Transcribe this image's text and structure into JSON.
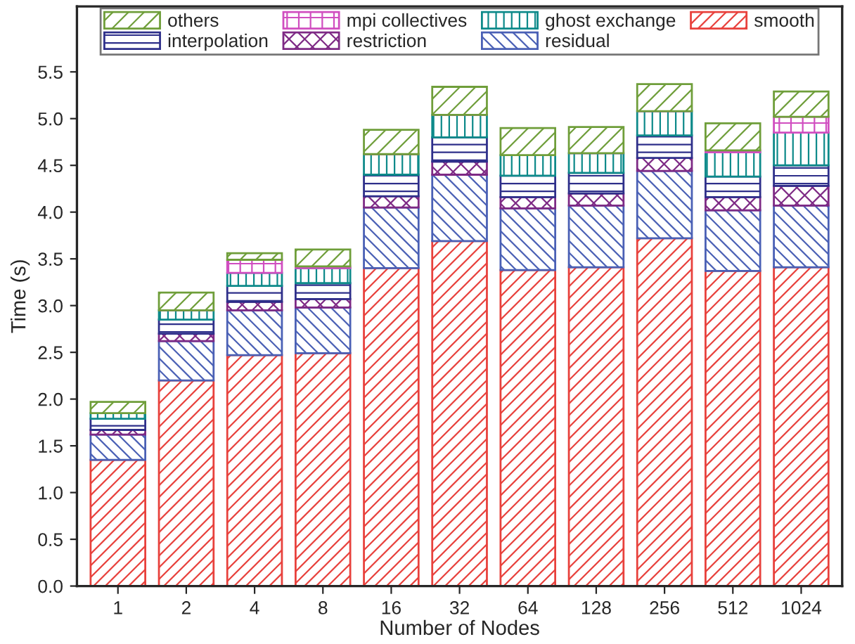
{
  "chart_data": {
    "type": "bar",
    "stacked": true,
    "xlabel": "Number of Nodes",
    "ylabel": "Time (s)",
    "categories": [
      "1",
      "2",
      "4",
      "8",
      "16",
      "32",
      "64",
      "128",
      "256",
      "512",
      "1024"
    ],
    "series": [
      {
        "name": "smooth",
        "color": "#e8413c",
        "values": [
          1.35,
          2.2,
          2.47,
          2.49,
          3.4,
          3.69,
          3.38,
          3.41,
          3.72,
          3.37,
          3.41
        ]
      },
      {
        "name": "residual",
        "color": "#4a60b5",
        "values": [
          0.27,
          0.42,
          0.48,
          0.49,
          0.65,
          0.71,
          0.66,
          0.66,
          0.72,
          0.65,
          0.66
        ]
      },
      {
        "name": "restriction",
        "color": "#7e2a85",
        "values": [
          0.05,
          0.08,
          0.09,
          0.09,
          0.12,
          0.14,
          0.12,
          0.13,
          0.14,
          0.14,
          0.21
        ]
      },
      {
        "name": "interpolation",
        "color": "#2e2f8a",
        "values": [
          0.12,
          0.15,
          0.17,
          0.17,
          0.23,
          0.26,
          0.23,
          0.22,
          0.24,
          0.22,
          0.22
        ]
      },
      {
        "name": "ghost exchange",
        "color": "#0e8a8a",
        "values": [
          0.06,
          0.1,
          0.14,
          0.16,
          0.22,
          0.24,
          0.22,
          0.21,
          0.26,
          0.26,
          0.35
        ]
      },
      {
        "name": "mpi collectives",
        "color": "#d04ec0",
        "values": [
          0.0,
          0.0,
          0.14,
          0.02,
          0.0,
          0.0,
          0.0,
          0.0,
          0.0,
          0.02,
          0.17
        ]
      },
      {
        "name": "others",
        "color": "#6f9e3a",
        "values": [
          0.12,
          0.19,
          0.07,
          0.18,
          0.26,
          0.3,
          0.29,
          0.28,
          0.29,
          0.29,
          0.27
        ]
      }
    ],
    "ylim": [
      0,
      6.2
    ],
    "yticks": [
      {
        "value": 0,
        "label": "0.0"
      },
      0.5,
      {
        "value": 1,
        "label": "1.0"
      },
      1.5,
      {
        "value": 2,
        "label": "2.0"
      },
      2.5,
      {
        "value": 3,
        "label": "3.0"
      },
      3.5,
      {
        "value": 4,
        "label": "4.0"
      },
      4.5,
      {
        "value": 5,
        "label": "5.0"
      },
      5.5
    ],
    "grid": false,
    "legend": "top"
  }
}
